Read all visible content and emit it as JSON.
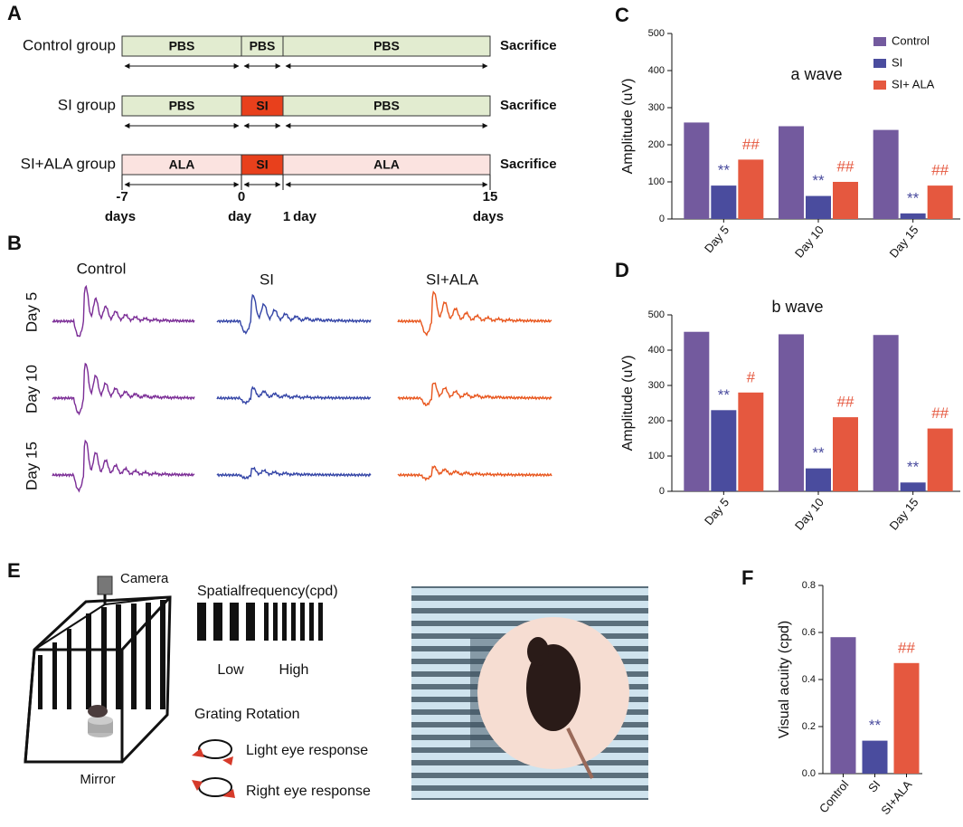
{
  "panel_labels": [
    "A",
    "B",
    "C",
    "D",
    "E",
    "F"
  ],
  "timeline": {
    "rows": [
      {
        "label": "Control group",
        "segments": [
          "PBS",
          "PBS",
          "PBS"
        ]
      },
      {
        "label": "SI group",
        "segments": [
          "PBS",
          "SI",
          "PBS"
        ]
      },
      {
        "label": "SI+ALA group",
        "segments": [
          "ALA",
          "SI",
          "ALA"
        ]
      }
    ],
    "end_label": "Sacrifice",
    "ticks": [
      {
        "day": "-7",
        "unit": "days"
      },
      {
        "day": "0",
        "unit": "day"
      },
      {
        "day": "1",
        "unit": "day"
      },
      {
        "day": "15",
        "unit": "days"
      }
    ]
  },
  "erg": {
    "columns": [
      "Control",
      "SI",
      "SI+ALA"
    ],
    "rows": [
      "Day 5",
      "Day 10",
      "Day 15"
    ]
  },
  "behavior": {
    "camera": "Camera",
    "mirror": "Mirror",
    "frequency_title": "Spatialfrequency(cpd)",
    "low": "Low",
    "high": "High",
    "rotation_title": "Grating Rotation",
    "responses": [
      "Light eye response",
      "Right eye response"
    ]
  },
  "chart_data": [
    {
      "type": "bar",
      "subtitle": "a  wave",
      "y_label": "Amplitude (uV)",
      "categories": [
        "Day 5",
        "Day 10",
        "Day 15"
      ],
      "series": [
        {
          "name": "Control",
          "color": "#735a9e",
          "values": [
            260,
            250,
            240
          ]
        },
        {
          "name": "SI",
          "color": "#4a4c9e",
          "values": [
            90,
            62,
            15
          ],
          "annotations": [
            "**",
            "**",
            "**"
          ]
        },
        {
          "name": "SI+ ALA",
          "color": "#e5583f",
          "values": [
            160,
            100,
            90
          ],
          "annotations": [
            "##",
            "##",
            "##"
          ]
        }
      ],
      "ylim": [
        0,
        500
      ],
      "yticks": [
        0,
        100,
        200,
        300,
        400,
        500
      ],
      "legend": "top-right"
    },
    {
      "type": "bar",
      "subtitle": "b wave",
      "y_label": "Amplitude (uV)",
      "categories": [
        "Day 5",
        "Day 10",
        "Day 15"
      ],
      "series": [
        {
          "name": "Control",
          "color": "#735a9e",
          "values": [
            452,
            445,
            443
          ]
        },
        {
          "name": "SI",
          "color": "#4a4c9e",
          "values": [
            230,
            65,
            25
          ],
          "annotations": [
            "**",
            "**",
            "**"
          ]
        },
        {
          "name": "SI+ ALA",
          "color": "#e5583f",
          "values": [
            280,
            210,
            178
          ],
          "annotations": [
            "#",
            "##",
            "##"
          ]
        }
      ],
      "ylim": [
        0,
        500
      ],
      "yticks": [
        0,
        100,
        200,
        300,
        400,
        500
      ]
    },
    {
      "type": "bar",
      "y_label": "Visual     acuity (cpd)",
      "categories": [
        "Control",
        "SI",
        "SI+ALA"
      ],
      "values": [
        0.58,
        0.14,
        0.47
      ],
      "colors": [
        "#735a9e",
        "#4a4c9e",
        "#e5583f"
      ],
      "annotations": [
        null,
        "**",
        "##"
      ],
      "ylim": [
        0,
        0.8
      ],
      "yticks": [
        {
          "value": 0,
          "label": "0.0"
        },
        0.2,
        0.4,
        0.6,
        0.8
      ]
    }
  ]
}
